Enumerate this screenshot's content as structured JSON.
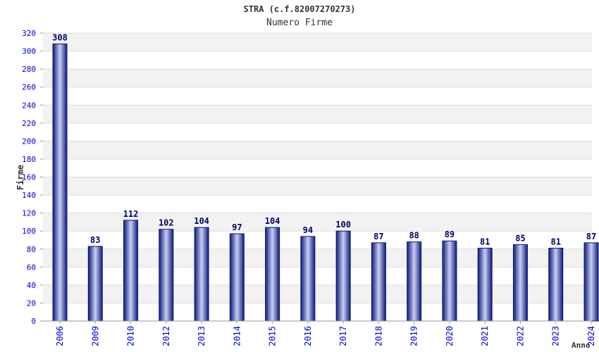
{
  "chart_data": {
    "type": "bar",
    "title": "STRA (c.f.82007270273)",
    "subtitle": "Numero Firme",
    "xlabel": "Anno",
    "ylabel": "Firme",
    "categories": [
      "2006",
      "2009",
      "2010",
      "2012",
      "2013",
      "2014",
      "2015",
      "2016",
      "2017",
      "2018",
      "2019",
      "2020",
      "2021",
      "2022",
      "2023",
      "2024"
    ],
    "series": [
      {
        "values": [
          308,
          83,
          112,
          102,
          104,
          97,
          104,
          94,
          100,
          87,
          88,
          89,
          81,
          85,
          81,
          87
        ]
      }
    ],
    "ylim": [
      0,
      320
    ],
    "yticks": [
      0,
      20,
      40,
      60,
      80,
      100,
      120,
      140,
      160,
      180,
      200,
      220,
      240,
      260,
      280,
      300,
      320
    ],
    "grid": true,
    "data_labels": true,
    "colors": {
      "bar_dark": "#0b1a7a",
      "bar_light": "#c9cff2",
      "tick_label": "#0000cc",
      "data_label": "#000066",
      "band": "#f2f2f2",
      "grid": "#dddddd"
    }
  }
}
